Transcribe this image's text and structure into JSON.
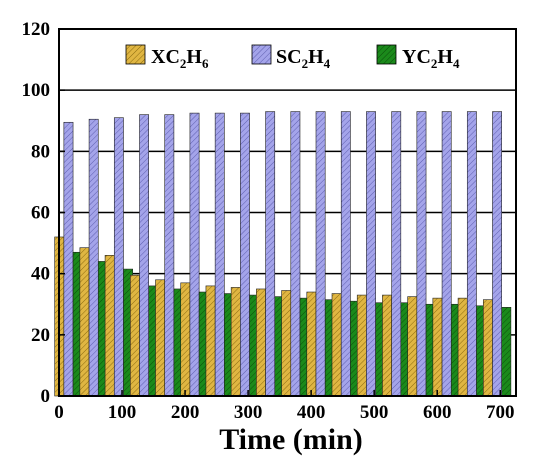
{
  "chart_data": {
    "type": "bar",
    "title": "",
    "xlabel": "Time (min)",
    "ylabel": "",
    "xlim": [
      0,
      725
    ],
    "ylim": [
      0,
      120
    ],
    "x_ticks": [
      "0",
      "100",
      "200",
      "300",
      "400",
      "500",
      "600",
      "700"
    ],
    "y_ticks": [
      "0",
      "20",
      "40",
      "60",
      "80",
      "100",
      "120"
    ],
    "grid": "horizontal",
    "legend_position": "top-right",
    "x": [
      15,
      55,
      95,
      135,
      175,
      215,
      255,
      295,
      335,
      375,
      415,
      455,
      495,
      535,
      575,
      615,
      655,
      695
    ],
    "series": [
      {
        "name": "XC2H6",
        "legend": {
          "a": "XC",
          "b": "2",
          "c": "H",
          "d": "6"
        },
        "color": "#e0b642",
        "values": [
          52.0,
          48.5,
          46.0,
          39.5,
          38.0,
          37.0,
          36.0,
          35.5,
          35.0,
          34.5,
          34.0,
          33.5,
          33.0,
          33.0,
          32.5,
          32.0,
          32.0,
          31.5
        ]
      },
      {
        "name": "SC2H4",
        "legend": {
          "a": "SC",
          "b": "2",
          "c": "H",
          "d": "4"
        },
        "color": "#9a9ae0",
        "values": [
          89.5,
          90.5,
          91.0,
          92.0,
          92.0,
          92.5,
          92.5,
          92.5,
          93.0,
          93.0,
          93.0,
          93.0,
          93.0,
          93.0,
          93.0,
          93.0,
          93.0,
          93.0
        ]
      },
      {
        "name": "YC2H4",
        "legend": {
          "a": "YC",
          "b": "2",
          "c": "H",
          "d": "4"
        },
        "color": "#1b7f1b",
        "values": [
          47.0,
          44.0,
          41.5,
          36.0,
          35.0,
          34.0,
          33.5,
          33.0,
          32.5,
          32.0,
          31.5,
          31.0,
          30.5,
          30.5,
          30.0,
          30.0,
          29.5,
          29.0
        ]
      }
    ]
  }
}
